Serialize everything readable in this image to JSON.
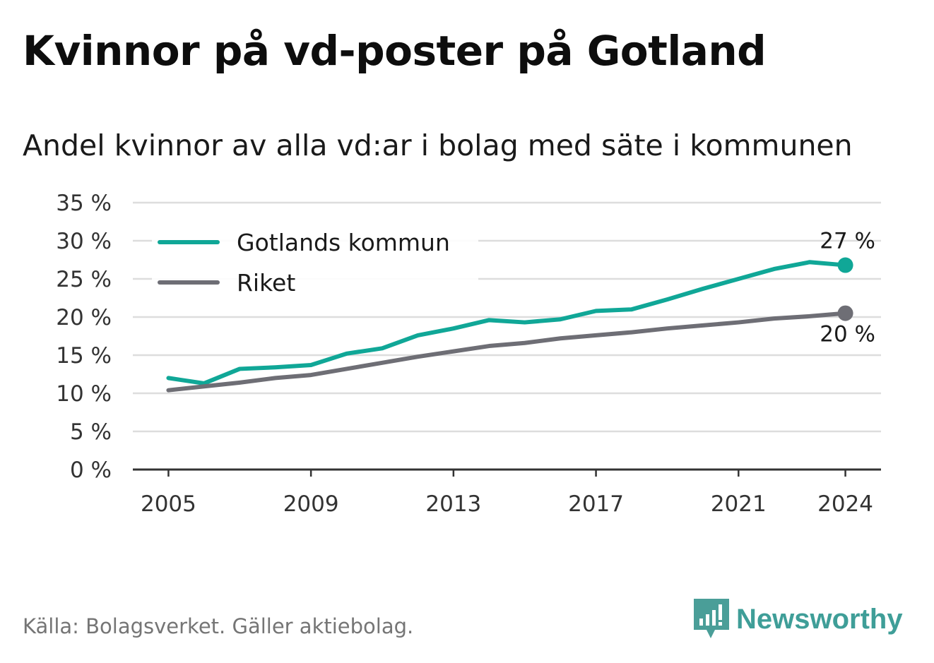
{
  "title": "Kvinnor på vd-poster på Gotland",
  "subtitle": "Andel kvinnor av alla vd:ar i bolag med säte i kommunen",
  "source": "Källa: Bolagsverket. Gäller aktiebolag.",
  "brand": {
    "name": "Newsworthy",
    "icon": "newsworthy-logo-icon",
    "color": "#4a9e98"
  },
  "colors": {
    "gotland": "#10a797",
    "riket": "#6e6e75",
    "grid": "#dddddd",
    "axis": "#333333"
  },
  "chart_data": {
    "type": "line",
    "title": "Kvinnor på vd-poster på Gotland",
    "subtitle": "Andel kvinnor av alla vd:ar i bolag med säte i kommunen",
    "xlabel": "",
    "ylabel": "",
    "x": [
      2005,
      2006,
      2007,
      2008,
      2009,
      2010,
      2011,
      2012,
      2013,
      2014,
      2015,
      2016,
      2017,
      2018,
      2019,
      2020,
      2021,
      2022,
      2023,
      2024
    ],
    "xticks": [
      "2005",
      "2009",
      "2013",
      "2017",
      "2021",
      "2024"
    ],
    "yticks": [
      "0 %",
      "5 %",
      "10 %",
      "15 %",
      "20 %",
      "25 %",
      "30 %",
      "35 %"
    ],
    "ylim": [
      0,
      35
    ],
    "grid": true,
    "legend_position": "top-left",
    "series": [
      {
        "name": "Gotlands kommun",
        "color": "#10a797",
        "values": [
          12.0,
          11.3,
          13.2,
          13.4,
          13.7,
          15.2,
          15.9,
          17.6,
          18.5,
          19.6,
          19.3,
          19.7,
          20.8,
          21.0,
          22.3,
          23.7,
          25.0,
          26.3,
          27.2,
          26.8
        ],
        "end_label": "27 %"
      },
      {
        "name": "Riket",
        "color": "#6e6e75",
        "values": [
          10.4,
          10.9,
          11.4,
          12.0,
          12.4,
          13.2,
          14.0,
          14.8,
          15.5,
          16.2,
          16.6,
          17.2,
          17.6,
          18.0,
          18.5,
          18.9,
          19.3,
          19.8,
          20.1,
          20.5
        ],
        "end_label": "20 %"
      }
    ]
  }
}
